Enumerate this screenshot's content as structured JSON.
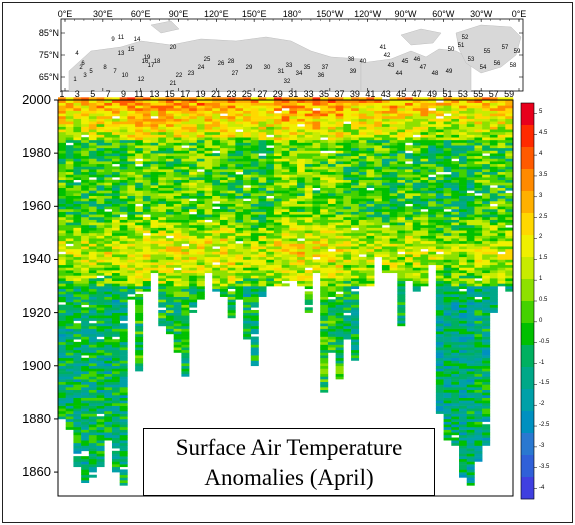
{
  "chart_data": {
    "type": "heatmap",
    "title_line1": "Surface Air Temperature",
    "title_line2": "Anomalies (April)",
    "map_lon_labels_top": [
      "0°E",
      "30°E",
      "60°E",
      "90°E",
      "120°E",
      "150°E",
      "180°",
      "150°W",
      "120°W",
      "90°W",
      "60°W",
      "30°W",
      "0°E"
    ],
    "map_lat_labels": [
      "85°N",
      "75°N",
      "65°N"
    ],
    "station_x_labels": [
      "1",
      "3",
      "5",
      "7",
      "9",
      "11",
      "13",
      "15",
      "17",
      "19",
      "21",
      "23",
      "25",
      "27",
      "29",
      "31",
      "33",
      "35",
      "37",
      "39",
      "41",
      "43",
      "45",
      "47",
      "49",
      "51",
      "53",
      "55",
      "57",
      "59"
    ],
    "station_count": 59,
    "y_ticks": [
      "2000",
      "1980",
      "1960",
      "1940",
      "1920",
      "1900",
      "1880",
      "1860"
    ],
    "ylim": [
      1851,
      2000
    ],
    "colorbar": {
      "ticks": [
        "5",
        "4.5",
        "4",
        "3.5",
        "3",
        "2.5",
        "2",
        "1.5",
        "1",
        "0.5",
        "0",
        "-0.5",
        "-1",
        "-1.5",
        "-2",
        "-2.5",
        "-3",
        "-3.5",
        "-4"
      ],
      "colors": [
        "#e8001c",
        "#ff2a00",
        "#ff5a00",
        "#ff8a00",
        "#ffb000",
        "#ffd800",
        "#f0f000",
        "#c8ec00",
        "#8ee000",
        "#44d200",
        "#00c000",
        "#00b060",
        "#00a888",
        "#00a0a8",
        "#0090c0",
        "#2a78d0",
        "#3060d8",
        "#4040e0"
      ]
    },
    "map_station_labels": [
      "1",
      "2",
      "3",
      "4",
      "5",
      "6",
      "7",
      "8",
      "9",
      "10",
      "11",
      "12",
      "13",
      "14",
      "15",
      "16",
      "17",
      "18",
      "19",
      "20",
      "21",
      "22",
      "23",
      "24",
      "25",
      "26",
      "27",
      "28",
      "29",
      "30",
      "31",
      "32",
      "33",
      "34",
      "35",
      "36",
      "37",
      "38",
      "39",
      "40",
      "41",
      "42",
      "43",
      "44",
      "45",
      "46",
      "47",
      "48",
      "49",
      "50",
      "51",
      "52",
      "53",
      "54",
      "55",
      "56",
      "57",
      "58",
      "59"
    ]
  }
}
